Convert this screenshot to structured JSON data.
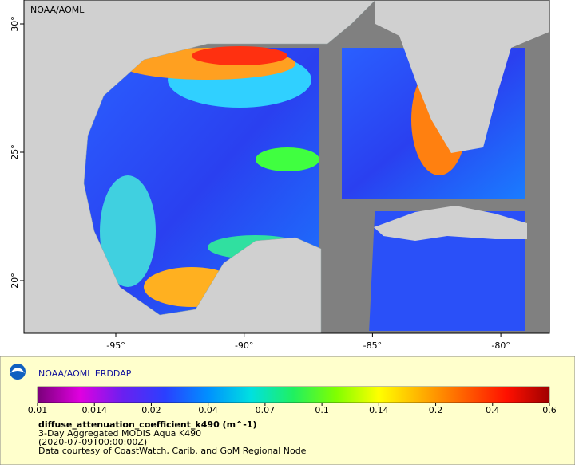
{
  "map": {
    "credit": "NOAA/AOML",
    "lon_ticks": [
      "-95°",
      "-90°",
      "-85°",
      "-80°"
    ],
    "lat_ticks": [
      "30°",
      "25°",
      "20°"
    ]
  },
  "legend": {
    "title": "NOAA/AOML ERDDAP",
    "colorbar": {
      "ticks": [
        0.01,
        0.014,
        0.02,
        0.04,
        0.07,
        0.1,
        0.14,
        0.2,
        0.4,
        0.6
      ],
      "colors": [
        "#7a007a",
        "#e000e0",
        "#6a20f0",
        "#2a40ff",
        "#0090ff",
        "#00e0e0",
        "#20f060",
        "#80ff00",
        "#ffff00",
        "#ffb000",
        "#ff6000",
        "#ff1000",
        "#a00000"
      ]
    },
    "variable": "diffuse_attenuation_coefficient_k490 (m^-1)",
    "lines": [
      "3-Day Aggregated MODIS Aqua K490",
      "(2020-07-09T00:00:00Z)",
      "Data courtesy of CoastWatch, Carib. and GoM Regional Node"
    ]
  }
}
